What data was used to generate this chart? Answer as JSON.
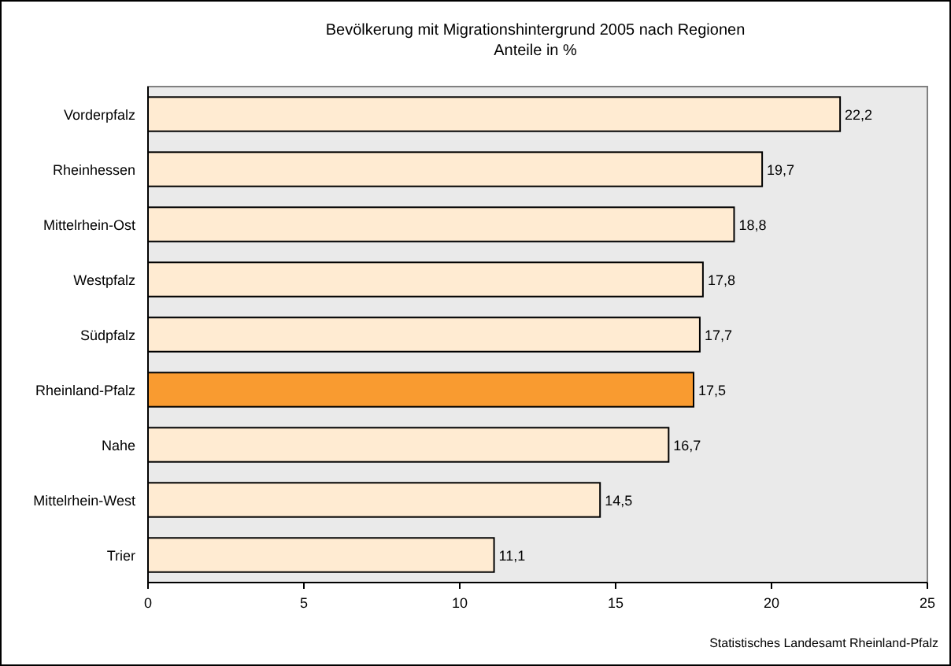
{
  "chart_data": {
    "type": "bar",
    "orientation": "horizontal",
    "title": "Bevölkerung mit Migrationshintergrund 2005 nach Regionen",
    "subtitle": "Anteile in %",
    "categories": [
      "Vorderpfalz",
      "Rheinhessen",
      "Mittelrhein-Ost",
      "Westpfalz",
      "Südpfalz",
      "Rheinland-Pfalz",
      "Nahe",
      "Mittelrhein-West",
      "Trier"
    ],
    "values": [
      22.2,
      19.7,
      18.8,
      17.8,
      17.7,
      17.5,
      16.7,
      14.5,
      11.1
    ],
    "value_labels": [
      "22,2",
      "19,7",
      "18,8",
      "17,8",
      "17,7",
      "17,5",
      "16,7",
      "14,5",
      "11,1"
    ],
    "colors": [
      "#ffebd2",
      "#ffebd2",
      "#ffebd2",
      "#ffebd2",
      "#ffebd2",
      "#f99b30",
      "#ffebd2",
      "#ffebd2",
      "#ffebd2"
    ],
    "xlim": [
      0,
      25
    ],
    "xticks": [
      0,
      5,
      10,
      15,
      20,
      25
    ],
    "grid": false,
    "annotations": [
      "Statistisches Landesamt Rheinland-Pfalz"
    ]
  }
}
